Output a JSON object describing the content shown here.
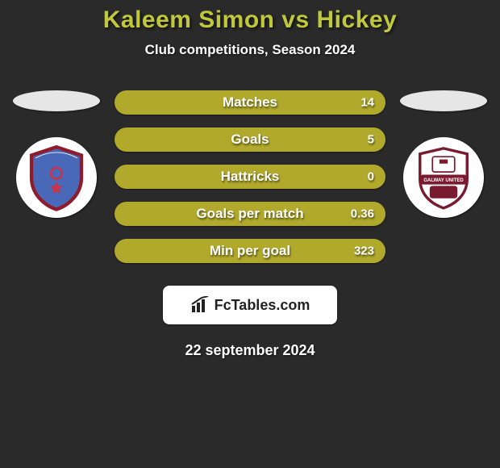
{
  "background_color": "#2a2a2a",
  "title": {
    "text": "Kaleem Simon vs Hickey",
    "color": "#c0c83a",
    "fontsize": 30
  },
  "subtitle": {
    "text": "Club competitions, Season 2024",
    "color": "#ffffff",
    "fontsize": 17
  },
  "left_oval_color": "#e6e6e6",
  "right_oval_color": "#e6e6e6",
  "bar_color": "#b0a92c",
  "bar_text_color": "#ffffff",
  "stats": [
    {
      "label": "Matches",
      "value": "14"
    },
    {
      "label": "Goals",
      "value": "5"
    },
    {
      "label": "Hattricks",
      "value": "0"
    },
    {
      "label": "Goals per match",
      "value": "0.36"
    },
    {
      "label": "Min per goal",
      "value": "323"
    }
  ],
  "left_badge": {
    "shield_fill": "#4968b8",
    "shield_border": "#8f1b2b",
    "symbol_color": "#c73448"
  },
  "right_badge": {
    "shield_fill": "#ffffff",
    "shield_border": "#7a1a2f",
    "banner_color": "#7a1a2f",
    "banner_text": "GALWAY UNITED"
  },
  "brand": {
    "text": "FcTables.com",
    "icon_color": "#222222"
  },
  "date": "22 september 2024"
}
